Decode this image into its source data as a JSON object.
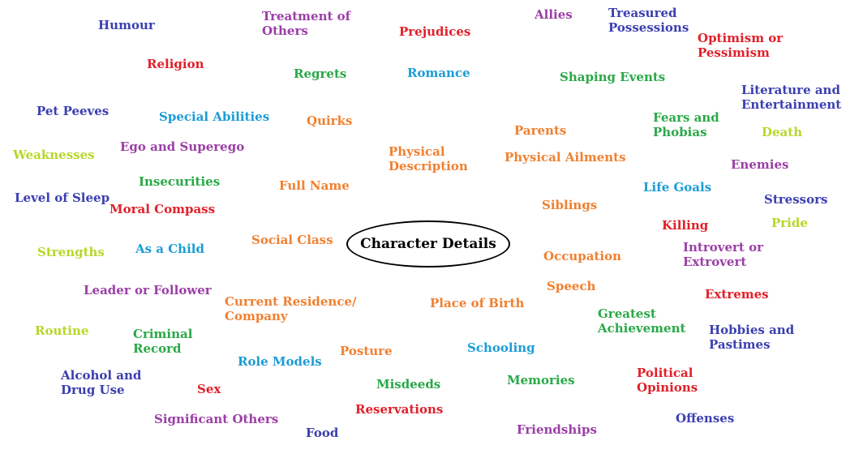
{
  "center": {
    "label": "Character Details"
  },
  "palette": {
    "blue": "#3b3fb0",
    "purple": "#9b3fa6",
    "red": "#e0202a",
    "green": "#2aa848",
    "cyan": "#1b9cd6",
    "orange": "#f08030",
    "lime": "#b4d82a"
  },
  "terms": [
    {
      "id": "humour",
      "text": "Humour",
      "color": "#3b3fb0"
    },
    {
      "id": "treatment-of-others",
      "text": "Treatment of\nOthers",
      "color": "#9b3fa6"
    },
    {
      "id": "prejudices",
      "text": "Prejudices",
      "color": "#e0202a"
    },
    {
      "id": "allies",
      "text": "Allies",
      "color": "#9b3fa6"
    },
    {
      "id": "treasured-possessions",
      "text": "Treasured\nPossessions",
      "color": "#3b3fb0"
    },
    {
      "id": "optimism-or-pessimism",
      "text": "Optimism or\nPessimism",
      "color": "#e0202a"
    },
    {
      "id": "religion",
      "text": "Religion",
      "color": "#e0202a"
    },
    {
      "id": "regrets",
      "text": "Regrets",
      "color": "#2aa848"
    },
    {
      "id": "romance",
      "text": "Romance",
      "color": "#1b9cd6"
    },
    {
      "id": "shaping-events",
      "text": "Shaping Events",
      "color": "#2aa848"
    },
    {
      "id": "literature-and-entertainment",
      "text": "Literature and\nEntertainment",
      "color": "#3b3fb0"
    },
    {
      "id": "pet-peeves",
      "text": "Pet Peeves",
      "color": "#3b3fb0"
    },
    {
      "id": "special-abilities",
      "text": "Special Abilities",
      "color": "#1b9cd6"
    },
    {
      "id": "quirks",
      "text": "Quirks",
      "color": "#f08030"
    },
    {
      "id": "fears-and-phobias",
      "text": "Fears and\nPhobias",
      "color": "#2aa848"
    },
    {
      "id": "parents",
      "text": "Parents",
      "color": "#f08030"
    },
    {
      "id": "death",
      "text": "Death",
      "color": "#b4d82a"
    },
    {
      "id": "weaknesses",
      "text": "Weaknesses",
      "color": "#b4d82a"
    },
    {
      "id": "ego-and-superego",
      "text": "Ego and Superego",
      "color": "#9b3fa6"
    },
    {
      "id": "physical-description",
      "text": "Physical\nDescription",
      "color": "#f08030"
    },
    {
      "id": "physical-ailments",
      "text": "Physical Ailments",
      "color": "#f08030"
    },
    {
      "id": "enemies",
      "text": "Enemies",
      "color": "#9b3fa6"
    },
    {
      "id": "insecurities",
      "text": "Insecurities",
      "color": "#2aa848"
    },
    {
      "id": "full-name",
      "text": "Full Name",
      "color": "#f08030"
    },
    {
      "id": "life-goals",
      "text": "Life Goals",
      "color": "#1b9cd6"
    },
    {
      "id": "level-of-sleep",
      "text": "Level of Sleep",
      "color": "#3b3fb0"
    },
    {
      "id": "moral-compass",
      "text": "Moral Compass",
      "color": "#e0202a"
    },
    {
      "id": "siblings",
      "text": "Siblings",
      "color": "#f08030"
    },
    {
      "id": "stressors",
      "text": "Stressors",
      "color": "#3b3fb0"
    },
    {
      "id": "killing",
      "text": "Killing",
      "color": "#e0202a"
    },
    {
      "id": "pride",
      "text": "Pride",
      "color": "#b4d82a"
    },
    {
      "id": "social-class",
      "text": "Social Class",
      "color": "#f08030"
    },
    {
      "id": "strengths",
      "text": "Strengths",
      "color": "#b4d82a"
    },
    {
      "id": "as-a-child",
      "text": "As a Child",
      "color": "#1b9cd6"
    },
    {
      "id": "introvert-or-extrovert",
      "text": "Introvert or\nExtrovert",
      "color": "#9b3fa6"
    },
    {
      "id": "occupation",
      "text": "Occupation",
      "color": "#f08030"
    },
    {
      "id": "leader-or-follower",
      "text": "Leader or Follower",
      "color": "#9b3fa6"
    },
    {
      "id": "speech",
      "text": "Speech",
      "color": "#f08030"
    },
    {
      "id": "extremes",
      "text": "Extremes",
      "color": "#e0202a"
    },
    {
      "id": "current-residence-company",
      "text": "Current Residence/\nCompany",
      "color": "#f08030"
    },
    {
      "id": "place-of-birth",
      "text": "Place of Birth",
      "color": "#f08030"
    },
    {
      "id": "greatest-achievement",
      "text": "Greatest\nAchievement",
      "color": "#2aa848"
    },
    {
      "id": "routine",
      "text": "Routine",
      "color": "#b4d82a"
    },
    {
      "id": "criminal-record",
      "text": "Criminal\nRecord",
      "color": "#2aa848"
    },
    {
      "id": "hobbies-and-pastimes",
      "text": "Hobbies and\nPastimes",
      "color": "#3b3fb0"
    },
    {
      "id": "role-models",
      "text": "Role Models",
      "color": "#1b9cd6"
    },
    {
      "id": "posture",
      "text": "Posture",
      "color": "#f08030"
    },
    {
      "id": "schooling",
      "text": "Schooling",
      "color": "#1b9cd6"
    },
    {
      "id": "alcohol-and-drug-use",
      "text": "Alcohol and\nDrug Use",
      "color": "#3b3fb0"
    },
    {
      "id": "political-opinions",
      "text": "Political\nOpinions",
      "color": "#e0202a"
    },
    {
      "id": "sex",
      "text": "Sex",
      "color": "#e0202a"
    },
    {
      "id": "misdeeds",
      "text": "Misdeeds",
      "color": "#2aa848"
    },
    {
      "id": "memories",
      "text": "Memories",
      "color": "#2aa848"
    },
    {
      "id": "reservations",
      "text": "Reservations",
      "color": "#e0202a"
    },
    {
      "id": "offenses",
      "text": "Offenses",
      "color": "#3b3fb0"
    },
    {
      "id": "significant-others",
      "text": "Significant Others",
      "color": "#9b3fa6"
    },
    {
      "id": "friendships",
      "text": "Friendships",
      "color": "#9b3fa6"
    },
    {
      "id": "food",
      "text": "Food",
      "color": "#3b3fb0"
    }
  ]
}
